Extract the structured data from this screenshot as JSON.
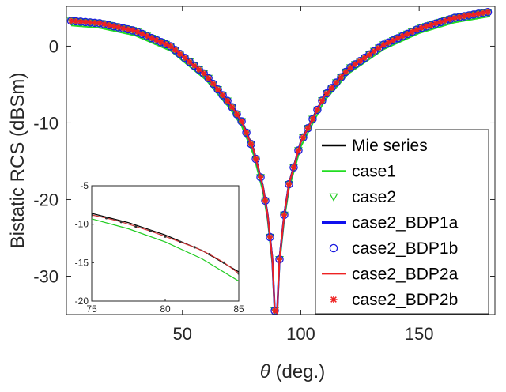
{
  "chart_data": {
    "type": "line",
    "title": "",
    "xlabel_symbol": "θ",
    "xlabel": " (deg.)",
    "ylabel": "Bistatic RCS (dBSm)",
    "xlim": [
      1,
      182
    ],
    "ylim": [
      -35,
      5.2
    ],
    "xticks": [
      50,
      100,
      150
    ],
    "xtick_labels": [
      "50",
      "100",
      "150"
    ],
    "yticks": [
      0,
      -10,
      -20,
      -30
    ],
    "ytick_labels": [
      "0",
      "-10",
      "-20",
      "-30"
    ],
    "grid": false,
    "legend_position": "bottom-right",
    "null_angle_deg": 89.5,
    "curve_points": {
      "theta": [
        3,
        15,
        30,
        45,
        60,
        70,
        75,
        80,
        84,
        86,
        88,
        89,
        90,
        91,
        93,
        95,
        100,
        110,
        120,
        135,
        150,
        165,
        180
      ],
      "rcs": [
        3.3,
        3.0,
        2.0,
        0.0,
        -3.8,
        -7.5,
        -9.8,
        -13.5,
        -18.3,
        -22.0,
        -27.8,
        -34.5,
        -34.8,
        -27.8,
        -22.0,
        -18.0,
        -12.5,
        -6.5,
        -3.0,
        0.2,
        2.3,
        3.7,
        4.5
      ]
    },
    "series": [
      {
        "name": "Mie series",
        "color": "#000000",
        "style": "line",
        "offset_db": 0.15
      },
      {
        "name": "case1",
        "color": "#22dd22",
        "style": "line",
        "offset_db": -0.6
      },
      {
        "name": "case2",
        "color": "#22cc22",
        "style": "triangle-down",
        "offset_db": 0
      },
      {
        "name": "case2_BDP1a",
        "color": "#1010ee",
        "style": "line",
        "offset_db": 0
      },
      {
        "name": "case2_BDP1b",
        "color": "#1a1adf",
        "style": "circle",
        "offset_db": 0
      },
      {
        "name": "case2_BDP2a",
        "color": "#ee2222",
        "style": "line",
        "offset_db": 0
      },
      {
        "name": "case2_BDP2b",
        "color": "#ee2222",
        "style": "star",
        "offset_db": 0
      }
    ],
    "marker_spacing_deg": 2,
    "inset": {
      "xlim": [
        75,
        85
      ],
      "ylim": [
        -20,
        -5
      ],
      "xticks": [
        75,
        80,
        85
      ],
      "xtick_labels": [
        "75",
        "80",
        "85"
      ],
      "yticks": [
        -5,
        -10,
        -15,
        -20
      ],
      "ytick_labels": [
        "-5",
        "-10",
        "-15",
        "-20"
      ],
      "curves": [
        {
          "series": "Mie series",
          "color": "#000000",
          "theta": [
            75,
            77.5,
            80,
            82.5,
            85
          ],
          "rcs": [
            -8.6,
            -9.8,
            -11.4,
            -13.4,
            -16.2
          ]
        },
        {
          "series": "case2 markers",
          "color": "#cc3333",
          "theta": [
            75,
            76,
            77,
            78,
            79,
            80,
            81,
            82,
            83,
            84,
            85
          ],
          "rcs": [
            -8.8,
            -9.2,
            -9.7,
            -10.3,
            -10.9,
            -11.6,
            -12.3,
            -13.0,
            -13.9,
            -15.0,
            -16.4
          ]
        },
        {
          "series": "case1",
          "color": "#22cc22",
          "theta": [
            75,
            77.5,
            80,
            82.5,
            85
          ],
          "rcs": [
            -9.3,
            -10.6,
            -12.3,
            -14.5,
            -17.4
          ]
        }
      ]
    }
  }
}
